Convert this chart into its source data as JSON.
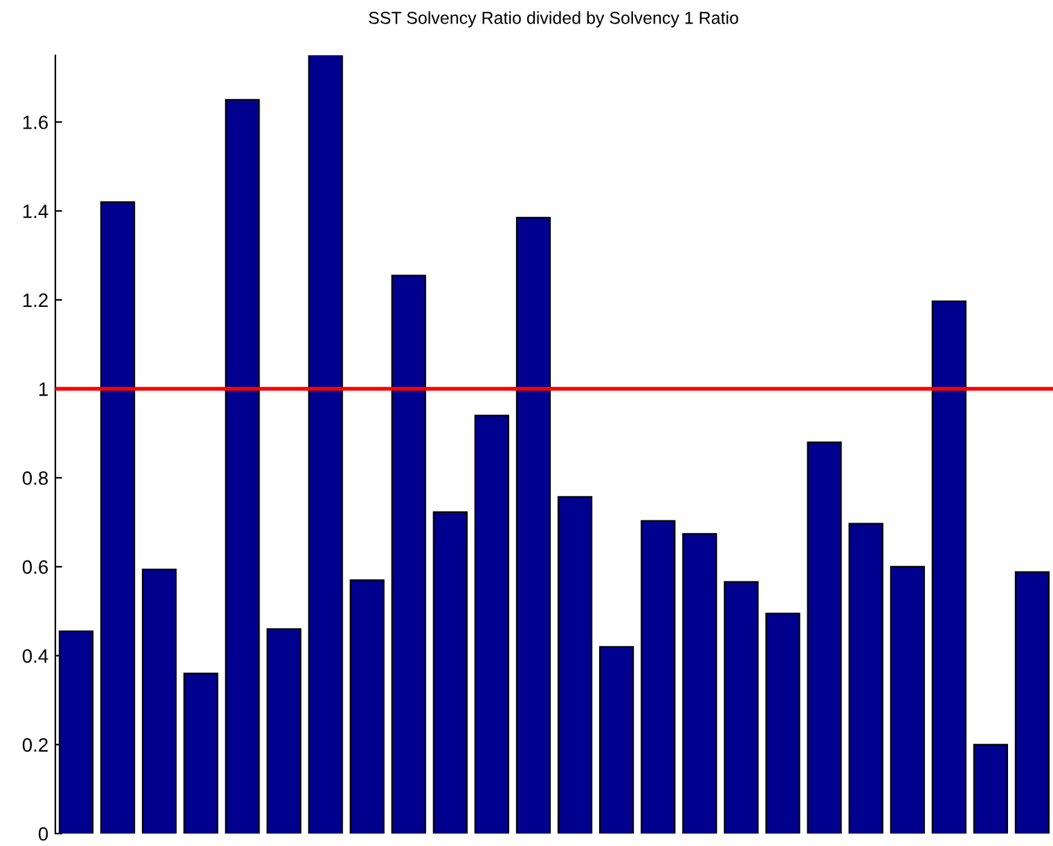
{
  "chart_data": {
    "type": "bar",
    "title": "SST Solvency Ratio divided by Solvency 1 Ratio",
    "categories": [
      null,
      null,
      null,
      null,
      null,
      null,
      null,
      null,
      null,
      null,
      null,
      null,
      null,
      null,
      null,
      null,
      null,
      null,
      null,
      null,
      null,
      null,
      null,
      null
    ],
    "values": [
      0.455,
      1.42,
      0.594,
      0.36,
      1.65,
      0.46,
      1.75,
      0.57,
      1.255,
      0.723,
      0.94,
      1.385,
      0.757,
      0.42,
      0.703,
      0.674,
      0.566,
      0.495,
      0.88,
      0.697,
      0.6,
      1.197,
      0.2,
      0.588
    ],
    "color": "#00008f",
    "ylim": [
      0,
      1.75
    ],
    "yticks": [
      0,
      0.2,
      0.4,
      0.6,
      0.8,
      1,
      1.2,
      1.4,
      1.6
    ],
    "ref_lines": [
      {
        "axis": "y",
        "value": 1,
        "color": "#ff0000",
        "line_style": "solid"
      }
    ],
    "tick_labels": "y",
    "grid": false,
    "legend": false
  }
}
